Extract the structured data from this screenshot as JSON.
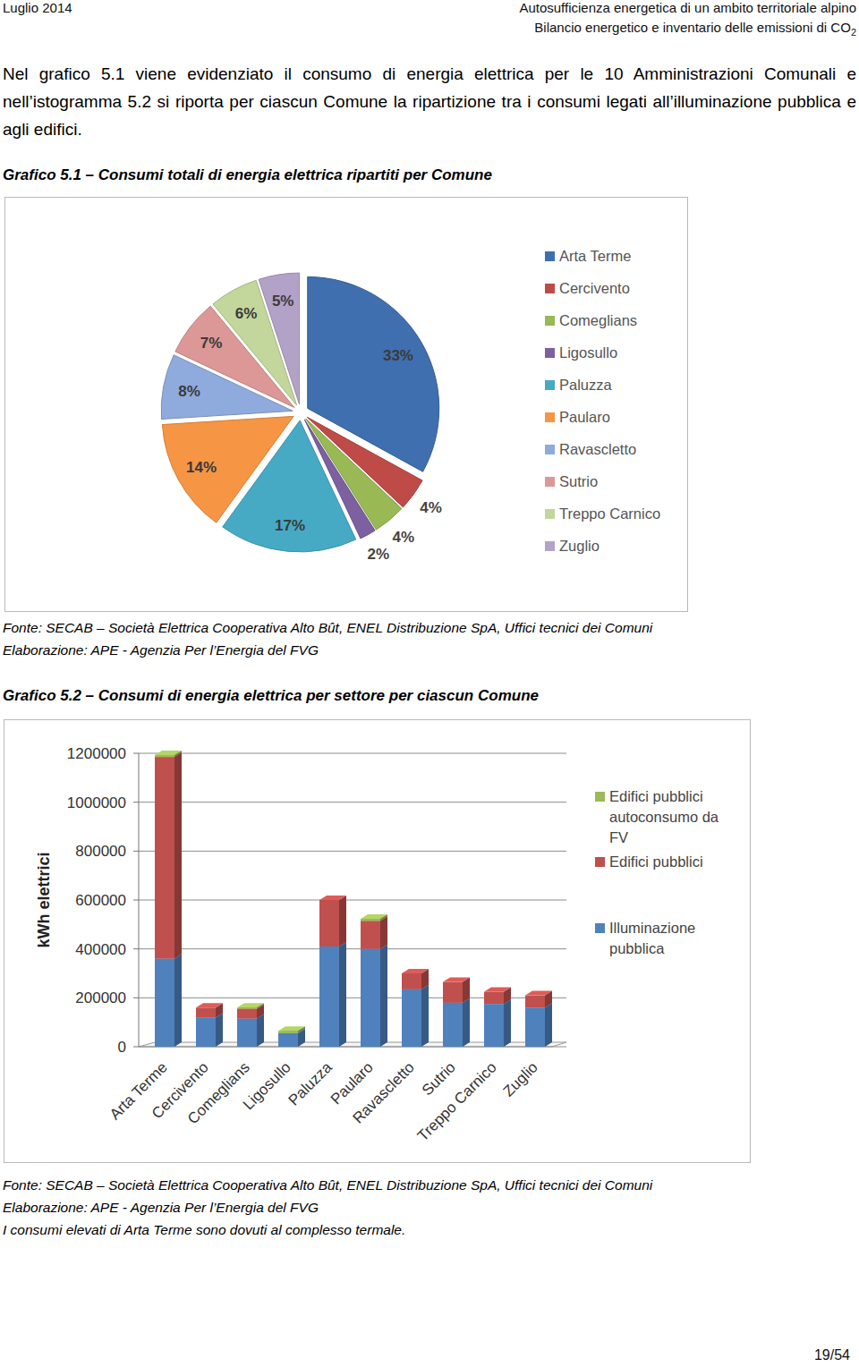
{
  "header": {
    "left": "Luglio 2014",
    "right": [
      "Autosufficienza energetica di un ambito territoriale alpino",
      "Bilancio energetico e inventario delle emissioni di CO"
    ],
    "right_subscript": "2"
  },
  "intro": "Nel grafico 5.1 viene evidenziato il consumo di energia elettrica per le 10 Amministrazioni Comunali e nell’istogramma 5.2 si riporta per ciascun Comune la ripartizione tra i consumi legati all’illuminazione pubblica e agli edifici.",
  "chart_data": [
    {
      "type": "pie",
      "title": "Grafico 5.1 – Consumi totali di energia elettrica ripartiti per Comune",
      "categories": [
        "Arta Terme",
        "Cercivento",
        "Comeglians",
        "Ligosullo",
        "Paluzza",
        "Paularo",
        "Ravascletto",
        "Sutrio",
        "Treppo Carnico",
        "Zuglio"
      ],
      "values": [
        33,
        4,
        4,
        2,
        17,
        14,
        8,
        7,
        6,
        5
      ],
      "value_labels": [
        "33%",
        "4%",
        "4%",
        "2%",
        "17%",
        "14%",
        "8%",
        "7%",
        "6%",
        "5%"
      ],
      "colors": [
        "#3f6fae",
        "#be4b48",
        "#98b954",
        "#7d60a0",
        "#46aac5",
        "#f69544",
        "#8faadc",
        "#dc9896",
        "#c3d69b",
        "#b3a2c7"
      ],
      "data_labels": true,
      "legend": "right",
      "annotations": [
        "Fonte: SECAB – Società Elettrica Cooperativa Alto Bût, ENEL Distribuzione SpA, Uffici tecnici dei Comuni",
        "Elaborazione: APE - Agenzia Per l’Energia del FVG"
      ]
    },
    {
      "type": "bar",
      "title": "Grafico 5.2 – Consumi di energia elettrica per settore per ciascun Comune",
      "y_label": "kWh elettrici",
      "categories": [
        "Arta Terme",
        "Cercivento",
        "Comeglians",
        "Ligosullo",
        "Paluzza",
        "Paularo",
        "Ravascletto",
        "Sutrio",
        "Treppo Carnico",
        "Zuglio"
      ],
      "series": [
        {
          "name": "Illuminazione pubblica",
          "color": "#4f81bd",
          "values": [
            360000,
            120000,
            115000,
            55000,
            410000,
            400000,
            235000,
            180000,
            175000,
            160000
          ]
        },
        {
          "name": "Edifici pubblici",
          "color": "#c0504d",
          "values": [
            825000,
            40000,
            40000,
            0,
            190000,
            115000,
            65000,
            85000,
            50000,
            50000
          ]
        },
        {
          "name": "Edifici pubblici autoconsumo da FV",
          "color": "#9bbb59",
          "values": [
            8000,
            0,
            5000,
            10000,
            0,
            8000,
            0,
            0,
            0,
            0
          ]
        }
      ],
      "stacked": true,
      "grid": true,
      "legend": "right",
      "ylim": [
        0,
        1200000
      ],
      "yticks": [
        0,
        200000,
        400000,
        600000,
        800000,
        1000000,
        1200000
      ],
      "annotations": [
        "Fonte: SECAB – Società Elettrica Cooperativa Alto Bût, ENEL Distribuzione SpA, Uffici tecnici dei Comuni",
        "Elaborazione: APE - Agenzia Per l’Energia del FVG",
        "I consumi elevati di Arta Terme sono dovuti al complesso termale."
      ]
    }
  ],
  "page_number": "19/54"
}
